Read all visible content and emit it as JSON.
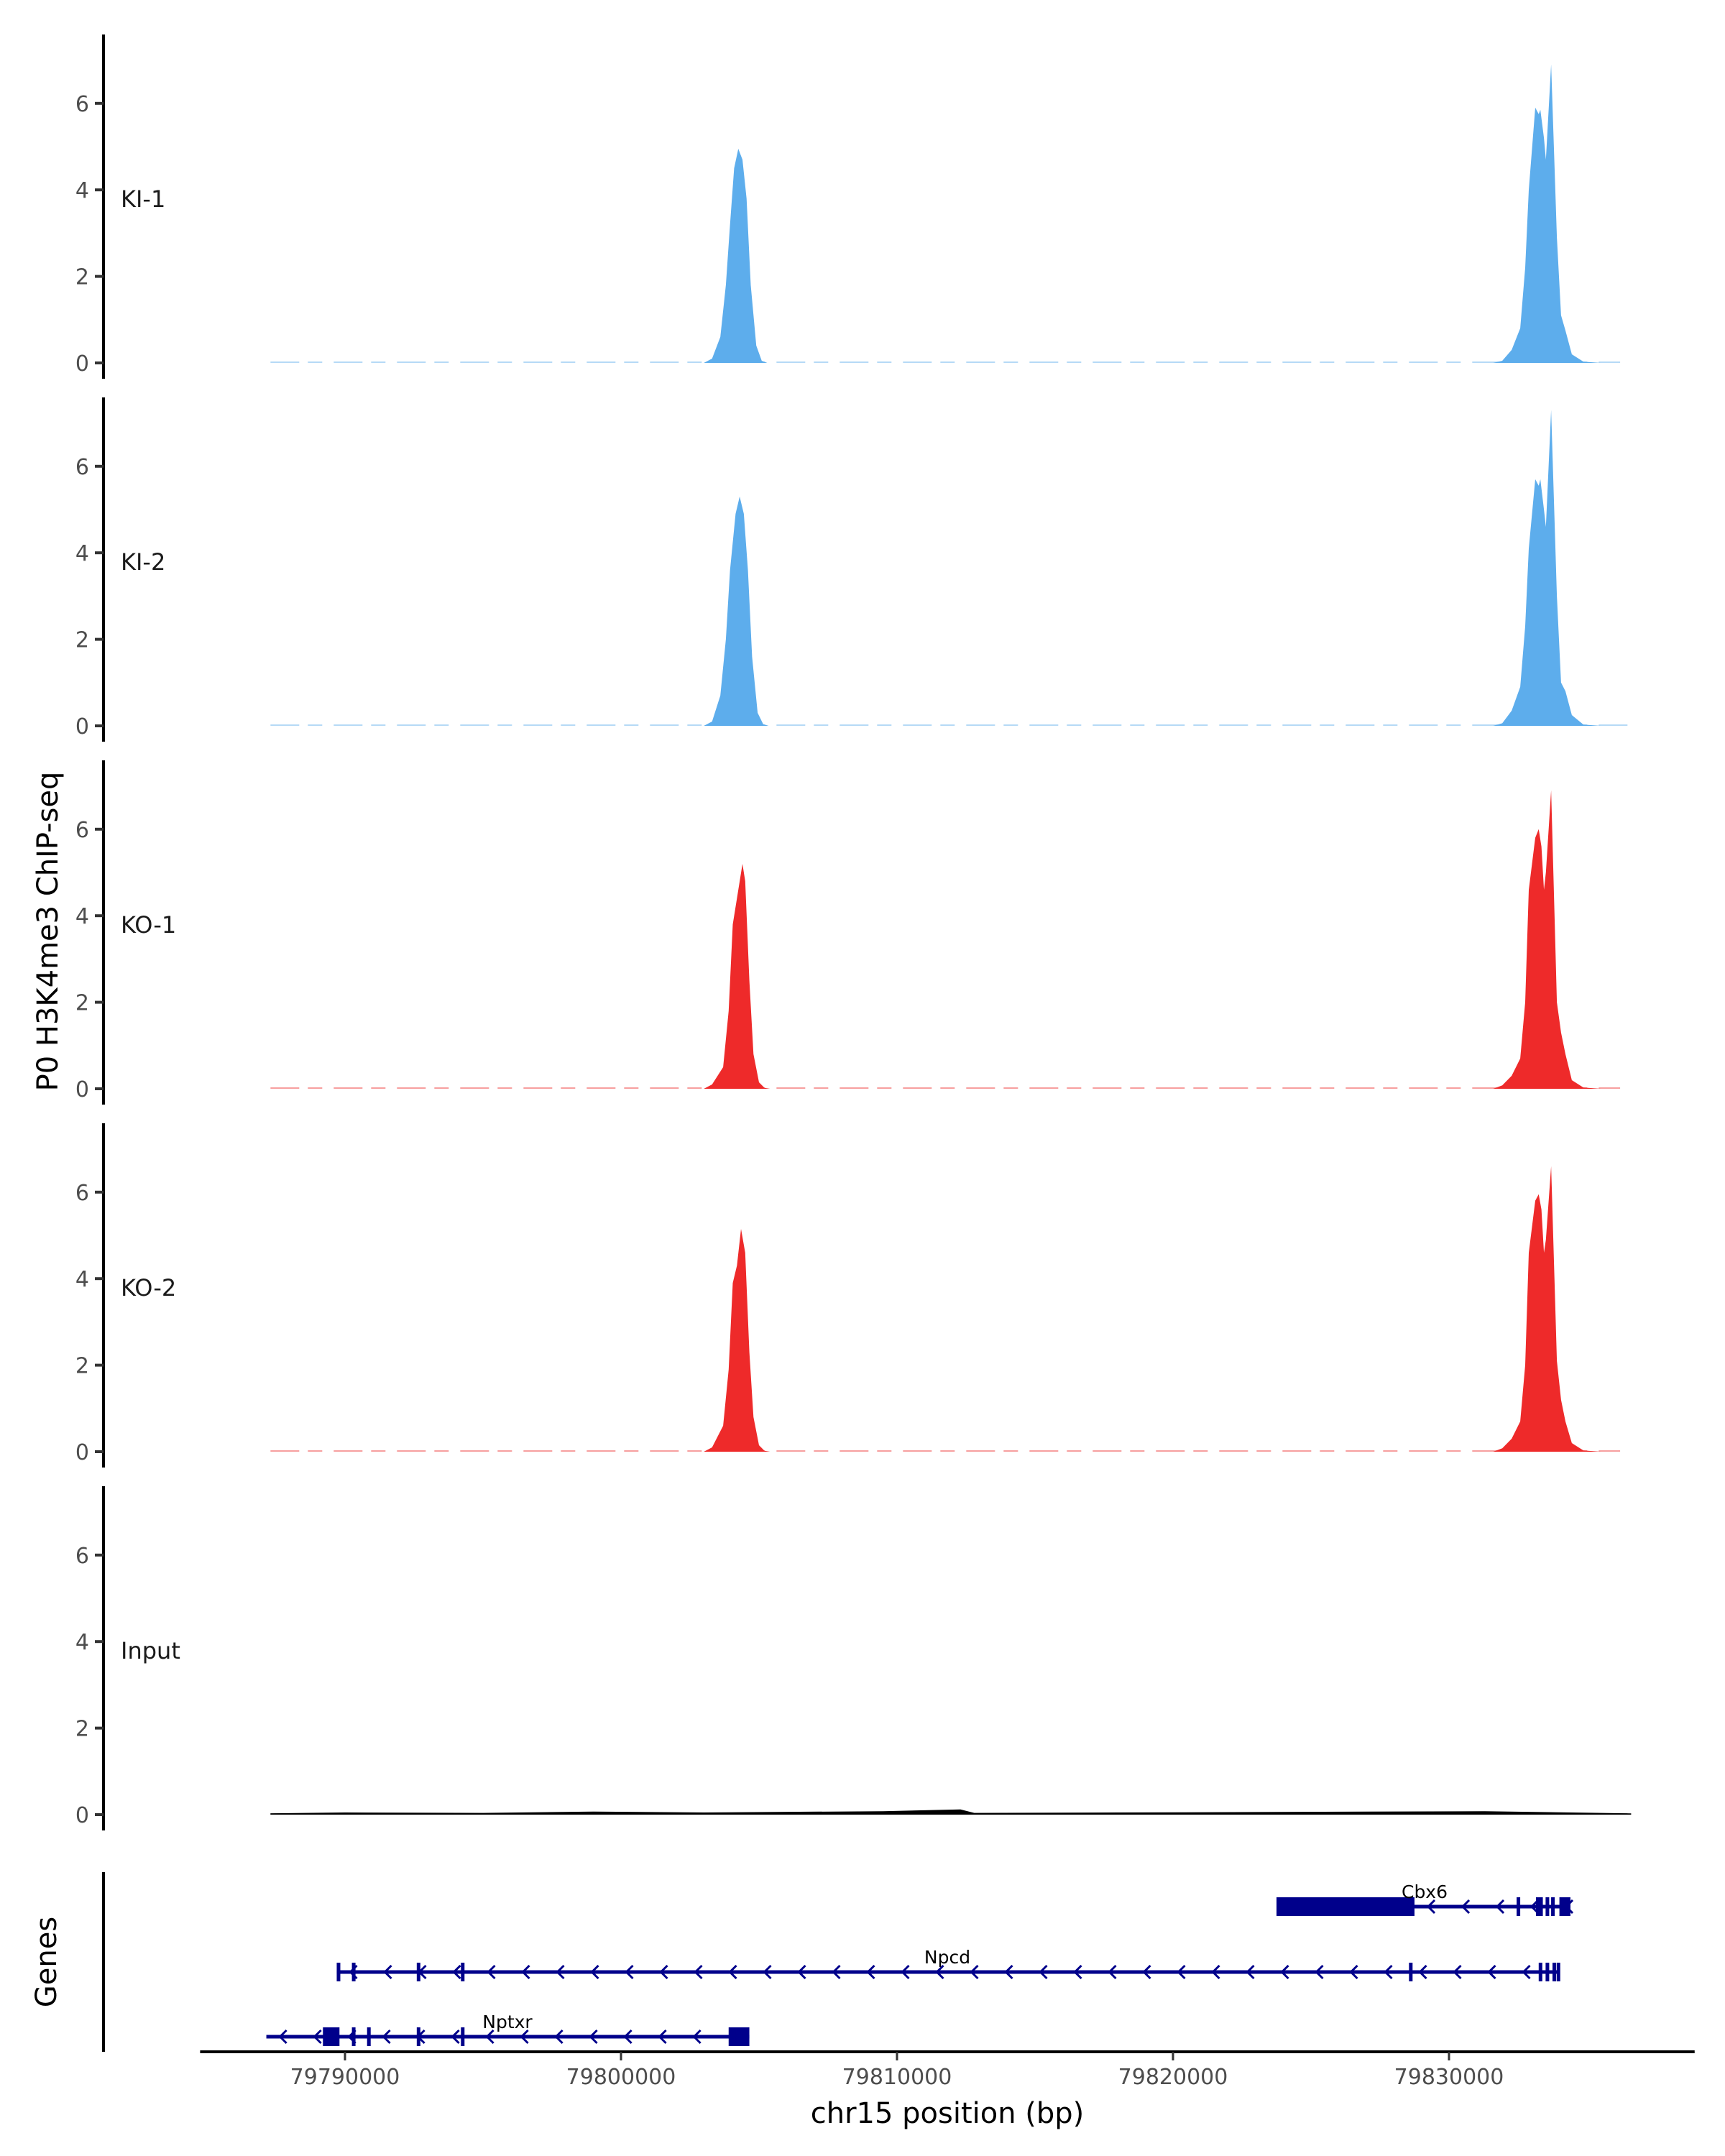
{
  "chart_data": {
    "type": "area",
    "title": "",
    "ylabel": "P0 H3K4me3 ChIP-seq",
    "xlabel": "chr15 position (bp)",
    "gene_track_label": "Genes",
    "ylim": [
      0,
      7.5
    ],
    "yticks": [
      "0",
      "2",
      "4",
      "6"
    ],
    "ytick_values": [
      0,
      2,
      4,
      6
    ],
    "xlim": [
      79784750,
      79838900
    ],
    "xticks": [
      "79790000",
      "79800000",
      "79810000",
      "79820000",
      "79830000"
    ],
    "xtick_values": [
      79790000,
      79800000,
      79810000,
      79820000,
      79830000
    ],
    "grid": false,
    "tracks": [
      {
        "name": "KI-1",
        "color": "#5DADEC",
        "range": [
          79787300,
          79836200
        ],
        "points": [
          [
            79803000,
            0
          ],
          [
            79803300,
            0.1
          ],
          [
            79803600,
            0.6
          ],
          [
            79803800,
            1.8
          ],
          [
            79803950,
            3.2
          ],
          [
            79804100,
            4.5
          ],
          [
            79804250,
            4.95
          ],
          [
            79804400,
            4.7
          ],
          [
            79804550,
            3.8
          ],
          [
            79804700,
            1.8
          ],
          [
            79804900,
            0.4
          ],
          [
            79805100,
            0.05
          ],
          [
            79805300,
            0
          ],
          [
            79831600,
            0
          ],
          [
            79831930,
            0.05
          ],
          [
            79832270,
            0.3
          ],
          [
            79832580,
            0.8
          ],
          [
            79832760,
            2.2
          ],
          [
            79832890,
            4.0
          ],
          [
            79833125,
            5.9
          ],
          [
            79833250,
            5.75
          ],
          [
            79833310,
            5.85
          ],
          [
            79833440,
            5.2
          ],
          [
            79833510,
            4.7
          ],
          [
            79833700,
            6.9
          ],
          [
            79833910,
            2.9
          ],
          [
            79834060,
            1.1
          ],
          [
            79834220,
            0.75
          ],
          [
            79834450,
            0.2
          ],
          [
            79834870,
            0.03
          ],
          [
            79835500,
            0
          ]
        ]
      },
      {
        "name": "KI-2",
        "color": "#5DADEC",
        "range": [
          79787300,
          79836600
        ],
        "points": [
          [
            79803000,
            0
          ],
          [
            79803300,
            0.1
          ],
          [
            79803600,
            0.7
          ],
          [
            79803800,
            2.0
          ],
          [
            79803950,
            3.6
          ],
          [
            79804150,
            4.9
          ],
          [
            79804300,
            5.3
          ],
          [
            79804450,
            4.9
          ],
          [
            79804600,
            3.6
          ],
          [
            79804750,
            1.6
          ],
          [
            79804950,
            0.3
          ],
          [
            79805150,
            0.04
          ],
          [
            79805350,
            0
          ],
          [
            79831600,
            0
          ],
          [
            79831930,
            0.06
          ],
          [
            79832270,
            0.35
          ],
          [
            79832580,
            0.9
          ],
          [
            79832760,
            2.3
          ],
          [
            79832890,
            4.1
          ],
          [
            79833125,
            5.7
          ],
          [
            79833250,
            5.55
          ],
          [
            79833310,
            5.7
          ],
          [
            79833440,
            5.0
          ],
          [
            79833510,
            4.6
          ],
          [
            79833700,
            7.3
          ],
          [
            79833910,
            3.0
          ],
          [
            79834060,
            1.0
          ],
          [
            79834220,
            0.8
          ],
          [
            79834450,
            0.25
          ],
          [
            79834870,
            0.03
          ],
          [
            79835500,
            0
          ]
        ]
      },
      {
        "name": "KO-1",
        "color": "#EE2A2A",
        "range": [
          79787300,
          79836200
        ],
        "points": [
          [
            79803000,
            0
          ],
          [
            79803300,
            0.1
          ],
          [
            79803700,
            0.5
          ],
          [
            79803900,
            1.8
          ],
          [
            79804050,
            3.8
          ],
          [
            79804200,
            4.4
          ],
          [
            79804400,
            5.2
          ],
          [
            79804500,
            4.8
          ],
          [
            79804650,
            2.5
          ],
          [
            79804800,
            0.8
          ],
          [
            79805000,
            0.15
          ],
          [
            79805200,
            0.02
          ],
          [
            79805400,
            0
          ],
          [
            79831600,
            0
          ],
          [
            79831930,
            0.08
          ],
          [
            79832270,
            0.3
          ],
          [
            79832580,
            0.7
          ],
          [
            79832760,
            2.0
          ],
          [
            79832890,
            4.6
          ],
          [
            79833125,
            5.8
          ],
          [
            79833250,
            6.0
          ],
          [
            79833350,
            5.6
          ],
          [
            79833440,
            4.6
          ],
          [
            79833510,
            5.0
          ],
          [
            79833700,
            6.9
          ],
          [
            79833910,
            2.0
          ],
          [
            79834060,
            1.3
          ],
          [
            79834220,
            0.8
          ],
          [
            79834450,
            0.2
          ],
          [
            79834870,
            0.03
          ],
          [
            79835500,
            0
          ]
        ]
      },
      {
        "name": "KO-2",
        "color": "#EE2A2A",
        "range": [
          79787300,
          79836200
        ],
        "points": [
          [
            79803000,
            0
          ],
          [
            79803300,
            0.1
          ],
          [
            79803700,
            0.6
          ],
          [
            79803900,
            1.9
          ],
          [
            79804050,
            3.9
          ],
          [
            79804200,
            4.3
          ],
          [
            79804350,
            5.15
          ],
          [
            79804500,
            4.6
          ],
          [
            79804650,
            2.3
          ],
          [
            79804800,
            0.8
          ],
          [
            79805000,
            0.15
          ],
          [
            79805200,
            0.02
          ],
          [
            79805400,
            0
          ],
          [
            79831600,
            0
          ],
          [
            79831930,
            0.08
          ],
          [
            79832270,
            0.3
          ],
          [
            79832580,
            0.7
          ],
          [
            79832760,
            2.0
          ],
          [
            79832890,
            4.6
          ],
          [
            79833125,
            5.8
          ],
          [
            79833250,
            5.95
          ],
          [
            79833350,
            5.6
          ],
          [
            79833440,
            4.6
          ],
          [
            79833510,
            4.9
          ],
          [
            79833700,
            6.6
          ],
          [
            79833910,
            2.1
          ],
          [
            79834060,
            1.2
          ],
          [
            79834220,
            0.7
          ],
          [
            79834450,
            0.2
          ],
          [
            79834870,
            0.03
          ],
          [
            79835500,
            0
          ]
        ]
      },
      {
        "name": "Input",
        "color": "#000000",
        "range": [
          79787300,
          79836600
        ],
        "points": [
          [
            79787300,
            0.03
          ],
          [
            79790000,
            0.05
          ],
          [
            79795000,
            0.04
          ],
          [
            79799000,
            0.07
          ],
          [
            79803000,
            0.05
          ],
          [
            79809500,
            0.08
          ],
          [
            79812300,
            0.12
          ],
          [
            79812800,
            0.04
          ],
          [
            79818000,
            0.05
          ],
          [
            79823000,
            0.06
          ],
          [
            79831300,
            0.08
          ],
          [
            79836600,
            0.03
          ]
        ]
      }
    ],
    "genes": [
      {
        "name": "Cbx6",
        "color": "#00008B",
        "start": 79823750,
        "end": 79834400,
        "strand": "-",
        "exons": [
          [
            79823750,
            79828750
          ],
          [
            79832450,
            79832550
          ],
          [
            79833150,
            79833400
          ],
          [
            79833500,
            79833550
          ],
          [
            79833700,
            79833750
          ],
          [
            79834000,
            79834400
          ]
        ]
      },
      {
        "name": "Npcd",
        "color": "#00008B",
        "start": 79789700,
        "end": 79834000,
        "strand": "-",
        "exons": [
          [
            79789700,
            79789800
          ],
          [
            79790250,
            79790350
          ],
          [
            79792600,
            79792700
          ],
          [
            79794200,
            79794300
          ],
          [
            79828550,
            79828650
          ],
          [
            79833250,
            79833300
          ],
          [
            79833500,
            79833550
          ],
          [
            79833750,
            79833800
          ],
          [
            79833900,
            79833950
          ]
        ]
      },
      {
        "name": "Nptxr",
        "color": "#00008B",
        "start": 79787150,
        "end": 79804650,
        "strand": "-",
        "exons": [
          [
            79789200,
            79789800
          ],
          [
            79790250,
            79790350
          ],
          [
            79790800,
            79790900
          ],
          [
            79792600,
            79792700
          ],
          [
            79794200,
            79794300
          ],
          [
            79803900,
            79804650
          ]
        ]
      }
    ]
  }
}
